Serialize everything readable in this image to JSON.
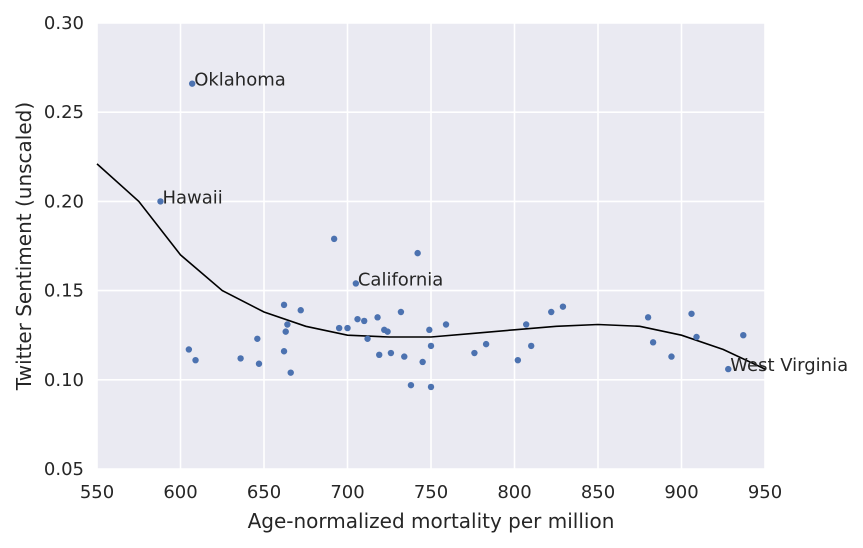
{
  "chart_data": {
    "type": "scatter",
    "title": "",
    "xlabel": "Age-normalized mortality per million",
    "ylabel": "Twitter Sentiment (unscaled)",
    "xlim": [
      550,
      950
    ],
    "ylim": [
      0.05,
      0.3
    ],
    "xticks": [
      550,
      600,
      650,
      700,
      750,
      800,
      850,
      900,
      950
    ],
    "yticks": [
      0.05,
      0.1,
      0.15,
      0.2,
      0.25,
      0.3
    ],
    "ytick_labels": [
      "0.05",
      "0.10",
      "0.15",
      "0.20",
      "0.25",
      "0.30"
    ],
    "grid": true,
    "background": "#eaeaf2",
    "point_color": "#4c72b0",
    "line_color": "#000000",
    "series": [
      {
        "points": [
          [
            607,
            0.266
          ],
          [
            588,
            0.2
          ],
          [
            705,
            0.154
          ],
          [
            928,
            0.106
          ],
          [
            692,
            0.179
          ],
          [
            742,
            0.171
          ],
          [
            662,
            0.142
          ],
          [
            664,
            0.131
          ],
          [
            663,
            0.127
          ],
          [
            672,
            0.139
          ],
          [
            695,
            0.129
          ],
          [
            700,
            0.129
          ],
          [
            706,
            0.134
          ],
          [
            710,
            0.133
          ],
          [
            712,
            0.123
          ],
          [
            718,
            0.135
          ],
          [
            719,
            0.114
          ],
          [
            722,
            0.128
          ],
          [
            724,
            0.127
          ],
          [
            726,
            0.115
          ],
          [
            732,
            0.138
          ],
          [
            734,
            0.113
          ],
          [
            738,
            0.097
          ],
          [
            745,
            0.11
          ],
          [
            749,
            0.128
          ],
          [
            750,
            0.119
          ],
          [
            750,
            0.096
          ],
          [
            759,
            0.131
          ],
          [
            776,
            0.115
          ],
          [
            783,
            0.12
          ],
          [
            802,
            0.111
          ],
          [
            807,
            0.131
          ],
          [
            810,
            0.119
          ],
          [
            822,
            0.138
          ],
          [
            829,
            0.141
          ],
          [
            880,
            0.135
          ],
          [
            883,
            0.121
          ],
          [
            894,
            0.113
          ],
          [
            906,
            0.137
          ],
          [
            909,
            0.124
          ],
          [
            937,
            0.125
          ],
          [
            605,
            0.117
          ],
          [
            609,
            0.111
          ],
          [
            636,
            0.112
          ],
          [
            646,
            0.123
          ],
          [
            647,
            0.109
          ],
          [
            662,
            0.116
          ],
          [
            666,
            0.104
          ]
        ]
      },
      {
        "type": "line",
        "points": [
          [
            550,
            0.221
          ],
          [
            575,
            0.2
          ],
          [
            600,
            0.17
          ],
          [
            625,
            0.15
          ],
          [
            650,
            0.138
          ],
          [
            675,
            0.13
          ],
          [
            700,
            0.125
          ],
          [
            725,
            0.124
          ],
          [
            750,
            0.124
          ],
          [
            775,
            0.126
          ],
          [
            800,
            0.128
          ],
          [
            825,
            0.13
          ],
          [
            850,
            0.131
          ],
          [
            875,
            0.13
          ],
          [
            900,
            0.125
          ],
          [
            925,
            0.117
          ],
          [
            950,
            0.106
          ]
        ]
      }
    ],
    "annotations": [
      {
        "text": "Oklahoma",
        "x": 607,
        "y": 0.266
      },
      {
        "text": "Hawaii",
        "x": 588,
        "y": 0.2
      },
      {
        "text": "California",
        "x": 705,
        "y": 0.154
      },
      {
        "text": "West Virginia",
        "x": 928,
        "y": 0.106
      }
    ]
  }
}
